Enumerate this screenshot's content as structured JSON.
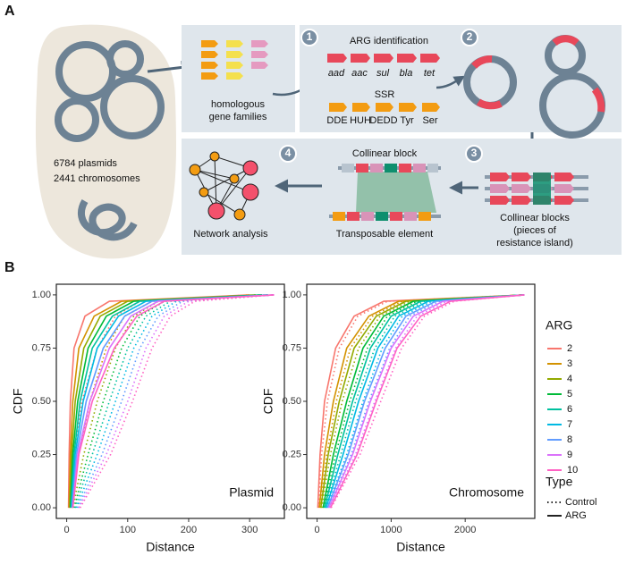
{
  "panel_labels": [
    "A",
    "B"
  ],
  "panel_a": {
    "genomes": [
      "6784 plasmids",
      "2441 chromosomes"
    ],
    "families": [
      "homologous",
      "gene families"
    ],
    "step_numbers": [
      "1",
      "2",
      "3",
      "4"
    ],
    "arg_title": "ARG identification",
    "arg_genes": [
      "aad",
      "aac",
      "sul",
      "bla",
      "tet"
    ],
    "ssr_title": "SSR",
    "ssr_genes": [
      "DDE",
      "HUH",
      "DEDD",
      "Tyr",
      "Ser"
    ],
    "collinear_blocks": [
      "Collinear blocks",
      "(pieces of",
      "resistance island)"
    ],
    "collinear_block": "Collinear block",
    "transposable": "Transposable element",
    "network": "Network analysis"
  },
  "legend": {
    "color_title": "ARG",
    "color_items": [
      {
        "name": "2",
        "color": "#F8766D"
      },
      {
        "name": "3",
        "color": "#D39200"
      },
      {
        "name": "4",
        "color": "#93AA00"
      },
      {
        "name": "5",
        "color": "#00BA38"
      },
      {
        "name": "6",
        "color": "#00C19F"
      },
      {
        "name": "7",
        "color": "#00B9E3"
      },
      {
        "name": "8",
        "color": "#619CFF"
      },
      {
        "name": "9",
        "color": "#DB72FB"
      },
      {
        "name": "10",
        "color": "#FF61C3"
      }
    ],
    "type_title": "Type",
    "type_items": [
      {
        "name": "Control",
        "linetype": "dotted"
      },
      {
        "name": "ARG",
        "linetype": "solid"
      }
    ]
  },
  "chart_data": [
    {
      "type": "line",
      "annotation": "Plasmid",
      "x_label": "Distance",
      "y_label": "CDF",
      "xlim": [
        -17,
        357
      ],
      "xticks": [
        0,
        100,
        200,
        300
      ],
      "ylim": [
        -0.05,
        1.05
      ],
      "yticks": [
        {
          "value": 0,
          "label": "0.00"
        },
        {
          "value": 0.25,
          "label": "0.25"
        },
        {
          "value": 0.5,
          "label": "0.50"
        },
        {
          "value": 0.75,
          "label": "0.75"
        },
        {
          "value": 1,
          "label": "1.00"
        }
      ],
      "series": [
        {
          "name": "2",
          "color": "#F8766D",
          "linetype": "dotted",
          "x": [
            5,
            12,
            25,
            50,
            80,
            120,
            300
          ],
          "values": [
            0,
            0.25,
            0.5,
            0.75,
            0.9,
            0.97,
            1
          ]
        },
        {
          "name": "3",
          "color": "#D39200",
          "linetype": "dotted",
          "x": [
            8,
            20,
            38,
            65,
            95,
            140,
            310
          ],
          "values": [
            0,
            0.25,
            0.5,
            0.75,
            0.9,
            0.97,
            1
          ]
        },
        {
          "name": "4",
          "color": "#93AA00",
          "linetype": "dotted",
          "x": [
            10,
            28,
            50,
            80,
            110,
            150,
            320
          ],
          "values": [
            0,
            0.25,
            0.5,
            0.75,
            0.9,
            0.97,
            1
          ]
        },
        {
          "name": "5",
          "color": "#00BA38",
          "linetype": "dotted",
          "x": [
            12,
            35,
            60,
            90,
            120,
            160,
            320
          ],
          "values": [
            0,
            0.25,
            0.5,
            0.75,
            0.9,
            0.97,
            1
          ]
        },
        {
          "name": "6",
          "color": "#00C19F",
          "linetype": "dotted",
          "x": [
            14,
            42,
            70,
            100,
            130,
            170,
            330
          ],
          "values": [
            0,
            0.25,
            0.5,
            0.75,
            0.9,
            0.97,
            1
          ]
        },
        {
          "name": "7",
          "color": "#00B9E3",
          "linetype": "dotted",
          "x": [
            16,
            50,
            80,
            110,
            140,
            180,
            330
          ],
          "values": [
            0,
            0.25,
            0.5,
            0.75,
            0.9,
            0.97,
            1
          ]
        },
        {
          "name": "8",
          "color": "#619CFF",
          "linetype": "dotted",
          "x": [
            18,
            58,
            90,
            120,
            150,
            190,
            340
          ],
          "values": [
            0,
            0.25,
            0.5,
            0.75,
            0.9,
            0.97,
            1
          ]
        },
        {
          "name": "9",
          "color": "#DB72FB",
          "linetype": "dotted",
          "x": [
            20,
            65,
            100,
            130,
            160,
            200,
            340
          ],
          "values": [
            0,
            0.25,
            0.5,
            0.75,
            0.9,
            0.97,
            1
          ]
        },
        {
          "name": "10",
          "color": "#FF61C3",
          "linetype": "dotted",
          "x": [
            22,
            72,
            108,
            140,
            170,
            210,
            340
          ],
          "values": [
            0,
            0.25,
            0.5,
            0.75,
            0.9,
            0.97,
            1
          ]
        },
        {
          "name": "2",
          "color": "#F8766D",
          "linetype": "solid",
          "x": [
            3,
            4,
            6,
            12,
            30,
            70,
            300
          ],
          "values": [
            0,
            0.25,
            0.5,
            0.75,
            0.9,
            0.97,
            1
          ]
        },
        {
          "name": "3",
          "color": "#D39200",
          "linetype": "solid",
          "x": [
            4,
            6,
            10,
            20,
            45,
            90,
            310
          ],
          "values": [
            0,
            0.25,
            0.5,
            0.75,
            0.9,
            0.97,
            1
          ]
        },
        {
          "name": "4",
          "color": "#93AA00",
          "linetype": "solid",
          "x": [
            5,
            8,
            14,
            28,
            55,
            100,
            320
          ],
          "values": [
            0,
            0.25,
            0.5,
            0.75,
            0.9,
            0.97,
            1
          ]
        },
        {
          "name": "5",
          "color": "#00BA38",
          "linetype": "solid",
          "x": [
            6,
            10,
            18,
            35,
            65,
            110,
            320
          ],
          "values": [
            0,
            0.25,
            0.5,
            0.75,
            0.9,
            0.97,
            1
          ]
        },
        {
          "name": "6",
          "color": "#00C19F",
          "linetype": "solid",
          "x": [
            7,
            12,
            22,
            42,
            75,
            120,
            330
          ],
          "values": [
            0,
            0.25,
            0.5,
            0.75,
            0.9,
            0.97,
            1
          ]
        },
        {
          "name": "7",
          "color": "#00B9E3",
          "linetype": "solid",
          "x": [
            8,
            14,
            27,
            50,
            85,
            130,
            330
          ],
          "values": [
            0,
            0.25,
            0.5,
            0.75,
            0.9,
            0.97,
            1
          ]
        },
        {
          "name": "8",
          "color": "#619CFF",
          "linetype": "solid",
          "x": [
            9,
            16,
            32,
            60,
            95,
            140,
            340
          ],
          "values": [
            0,
            0.25,
            0.5,
            0.75,
            0.9,
            0.97,
            1
          ]
        },
        {
          "name": "9",
          "color": "#DB72FB",
          "linetype": "solid",
          "x": [
            10,
            18,
            38,
            70,
            105,
            150,
            340
          ],
          "values": [
            0,
            0.25,
            0.5,
            0.75,
            0.9,
            0.97,
            1
          ]
        },
        {
          "name": "10",
          "color": "#FF61C3",
          "linetype": "solid",
          "x": [
            10,
            20,
            42,
            78,
            115,
            160,
            340
          ],
          "values": [
            0,
            0.25,
            0.5,
            0.75,
            0.9,
            0.97,
            1
          ]
        }
      ]
    },
    {
      "type": "line",
      "annotation": "Chromosome",
      "x_label": "Distance",
      "y_label": "CDF",
      "xlim": [
        -140,
        2940
      ],
      "xticks": [
        0,
        1000,
        2000
      ],
      "ylim": [
        -0.05,
        1.05
      ],
      "yticks": [
        {
          "value": 0,
          "label": "0.00"
        },
        {
          "value": 0.25,
          "label": "0.25"
        },
        {
          "value": 0.5,
          "label": "0.50"
        },
        {
          "value": 0.75,
          "label": "0.75"
        },
        {
          "value": 1,
          "label": "1.00"
        }
      ],
      "series": [
        {
          "name": "2",
          "color": "#F8766D",
          "linetype": "dotted",
          "x": [
            20,
            60,
            140,
            300,
            550,
            950,
            2800
          ],
          "values": [
            0,
            0.25,
            0.5,
            0.75,
            0.9,
            0.97,
            1
          ]
        },
        {
          "name": "3",
          "color": "#D39200",
          "linetype": "dotted",
          "x": [
            40,
            130,
            260,
            450,
            750,
            1150,
            2800
          ],
          "values": [
            0,
            0.25,
            0.5,
            0.75,
            0.9,
            0.97,
            1
          ]
        },
        {
          "name": "4",
          "color": "#93AA00",
          "linetype": "dotted",
          "x": [
            60,
            180,
            340,
            560,
            850,
            1250,
            2800
          ],
          "values": [
            0,
            0.25,
            0.5,
            0.75,
            0.9,
            0.97,
            1
          ]
        },
        {
          "name": "5",
          "color": "#00BA38",
          "linetype": "dotted",
          "x": [
            90,
            250,
            440,
            680,
            950,
            1350,
            2800
          ],
          "values": [
            0,
            0.25,
            0.5,
            0.75,
            0.9,
            0.97,
            1
          ]
        },
        {
          "name": "6",
          "color": "#00C19F",
          "linetype": "dotted",
          "x": [
            110,
            320,
            520,
            780,
            1050,
            1450,
            2800
          ],
          "values": [
            0,
            0.25,
            0.5,
            0.75,
            0.9,
            0.97,
            1
          ]
        },
        {
          "name": "7",
          "color": "#00B9E3",
          "linetype": "dotted",
          "x": [
            130,
            400,
            620,
            880,
            1150,
            1550,
            2800
          ],
          "values": [
            0,
            0.25,
            0.5,
            0.75,
            0.9,
            0.97,
            1
          ]
        },
        {
          "name": "8",
          "color": "#619CFF",
          "linetype": "dotted",
          "x": [
            150,
            460,
            700,
            980,
            1250,
            1650,
            2800
          ],
          "values": [
            0,
            0.25,
            0.5,
            0.75,
            0.9,
            0.97,
            1
          ]
        },
        {
          "name": "9",
          "color": "#DB72FB",
          "linetype": "dotted",
          "x": [
            170,
            520,
            780,
            1060,
            1350,
            1750,
            2800
          ],
          "values": [
            0,
            0.25,
            0.5,
            0.75,
            0.9,
            0.97,
            1
          ]
        },
        {
          "name": "10",
          "color": "#FF61C3",
          "linetype": "dotted",
          "x": [
            190,
            580,
            860,
            1140,
            1450,
            1850,
            2800
          ],
          "values": [
            0,
            0.25,
            0.5,
            0.75,
            0.9,
            0.97,
            1
          ]
        },
        {
          "name": "2",
          "color": "#F8766D",
          "linetype": "solid",
          "x": [
            10,
            40,
            100,
            250,
            500,
            900,
            2800
          ],
          "values": [
            0,
            0.25,
            0.5,
            0.75,
            0.9,
            0.97,
            1
          ]
        },
        {
          "name": "3",
          "color": "#D39200",
          "linetype": "solid",
          "x": [
            30,
            100,
            220,
            400,
            700,
            1100,
            2800
          ],
          "values": [
            0,
            0.25,
            0.5,
            0.75,
            0.9,
            0.97,
            1
          ]
        },
        {
          "name": "4",
          "color": "#93AA00",
          "linetype": "solid",
          "x": [
            50,
            150,
            300,
            500,
            800,
            1200,
            2800
          ],
          "values": [
            0,
            0.25,
            0.5,
            0.75,
            0.9,
            0.97,
            1
          ]
        },
        {
          "name": "5",
          "color": "#00BA38",
          "linetype": "solid",
          "x": [
            80,
            220,
            400,
            620,
            900,
            1300,
            2800
          ],
          "values": [
            0,
            0.25,
            0.5,
            0.75,
            0.9,
            0.97,
            1
          ]
        },
        {
          "name": "6",
          "color": "#00C19F",
          "linetype": "solid",
          "x": [
            100,
            280,
            480,
            720,
            1000,
            1400,
            2800
          ],
          "values": [
            0,
            0.25,
            0.5,
            0.75,
            0.9,
            0.97,
            1
          ]
        },
        {
          "name": "7",
          "color": "#00B9E3",
          "linetype": "solid",
          "x": [
            120,
            350,
            560,
            820,
            1100,
            1500,
            2800
          ],
          "values": [
            0,
            0.25,
            0.5,
            0.75,
            0.9,
            0.97,
            1
          ]
        },
        {
          "name": "8",
          "color": "#619CFF",
          "linetype": "solid",
          "x": [
            140,
            420,
            640,
            920,
            1200,
            1600,
            2800
          ],
          "values": [
            0,
            0.25,
            0.5,
            0.75,
            0.9,
            0.97,
            1
          ]
        },
        {
          "name": "9",
          "color": "#DB72FB",
          "linetype": "solid",
          "x": [
            160,
            480,
            720,
            1000,
            1300,
            1700,
            2800
          ],
          "values": [
            0,
            0.25,
            0.5,
            0.75,
            0.9,
            0.97,
            1
          ]
        },
        {
          "name": "10",
          "color": "#FF61C3",
          "linetype": "solid",
          "x": [
            180,
            540,
            800,
            1080,
            1400,
            1800,
            2800
          ],
          "values": [
            0,
            0.25,
            0.5,
            0.75,
            0.9,
            0.97,
            1
          ]
        }
      ]
    }
  ]
}
